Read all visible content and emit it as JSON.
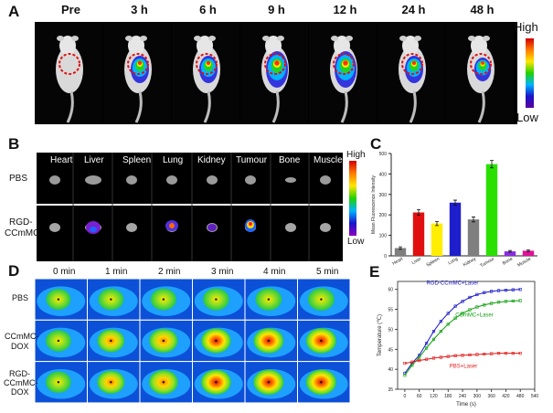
{
  "panel_labels": {
    "a": "A",
    "b": "B",
    "c": "C",
    "d": "D",
    "e": "E"
  },
  "panel_a": {
    "timepoints": [
      "Pre",
      "3 h",
      "6 h",
      "9 h",
      "12 h",
      "24 h",
      "48 h"
    ],
    "colorbar_high": "High",
    "colorbar_low": "Low"
  },
  "panel_b": {
    "organs": [
      "Heart",
      "Liver",
      "Spleen",
      "Lung",
      "Kidney",
      "Tumour",
      "Bone",
      "Muscle"
    ],
    "row1": "PBS",
    "row2a": "RGD-",
    "row2b": "CCmMC",
    "colorbar_high": "High",
    "colorbar_low": "Low"
  },
  "panel_d": {
    "times": [
      "0 min",
      "1 min",
      "2 min",
      "3 min",
      "4 min",
      "5 min"
    ],
    "row1": "PBS",
    "row2a": "CCmMC-",
    "row2b": "DOX",
    "row3a": "RGD-",
    "row3b": "CCmMC-",
    "row3c": "DOX"
  },
  "chart_data": [
    {
      "type": "bar",
      "panel": "C",
      "ylabel": "Mean Fluorescence Intensity",
      "categories": [
        "Heart",
        "Liver",
        "Spleen",
        "Lung",
        "Kidney",
        "Tumour",
        "Bone",
        "Muscle"
      ],
      "values": [
        38,
        212,
        158,
        260,
        178,
        448,
        22,
        25
      ],
      "errors": [
        6,
        14,
        10,
        12,
        12,
        18,
        4,
        4
      ],
      "colors": [
        "#7f7f7f",
        "#e01010",
        "#ffee00",
        "#1e1ecc",
        "#7f7f7f",
        "#29e000",
        "#8a2be2",
        "#e0109a"
      ],
      "ylim": [
        0,
        500
      ],
      "yticks": [
        "0",
        "100",
        "200",
        "300",
        "400",
        "500"
      ]
    },
    {
      "type": "line",
      "panel": "E",
      "xlabel": "Time (s)",
      "ylabel": "Temperature (℃)",
      "xlim": [
        -30,
        540
      ],
      "ylim": [
        35,
        62
      ],
      "xticks": [
        "0",
        "60",
        "120",
        "180",
        "240",
        "300",
        "360",
        "420",
        "480",
        "540"
      ],
      "yticks": [
        "35",
        "40",
        "45",
        "50",
        "55",
        "60"
      ],
      "series": [
        {
          "name": "RGD-CCmMC+Laser",
          "color": "#1515c8",
          "x": [
            0,
            30,
            60,
            90,
            120,
            150,
            180,
            210,
            240,
            270,
            300,
            330,
            360,
            390,
            420,
            450,
            480
          ],
          "y": [
            39,
            41.5,
            43.5,
            46.5,
            49.5,
            52,
            54,
            55.8,
            57,
            58,
            58.7,
            59.2,
            59.5,
            59.7,
            59.8,
            59.9,
            60
          ]
        },
        {
          "name": "CCmMC+Laser",
          "color": "#10a010",
          "x": [
            0,
            30,
            60,
            90,
            120,
            150,
            180,
            210,
            240,
            270,
            300,
            330,
            360,
            390,
            420,
            450,
            480
          ],
          "y": [
            38.5,
            41,
            43,
            45.3,
            47.5,
            49.5,
            51.3,
            52.8,
            54,
            54.9,
            55.6,
            56.1,
            56.5,
            56.8,
            57,
            57.1,
            57.2
          ]
        },
        {
          "name": "PBS+Laser",
          "color": "#e01818",
          "x": [
            0,
            30,
            60,
            90,
            120,
            150,
            180,
            210,
            240,
            270,
            300,
            330,
            360,
            390,
            420,
            450,
            480
          ],
          "y": [
            41.5,
            41.8,
            42.2,
            42.5,
            42.8,
            43,
            43.2,
            43.4,
            43.5,
            43.6,
            43.7,
            43.8,
            43.9,
            44,
            44,
            44,
            44
          ]
        }
      ]
    }
  ]
}
